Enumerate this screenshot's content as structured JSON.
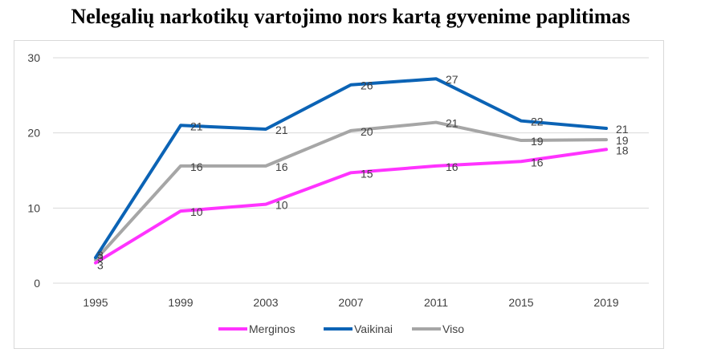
{
  "chart_data": {
    "type": "line",
    "title": "Nelegalių narkotikų vartojimo nors kartą gyvenime paplitimas",
    "xlabel": "",
    "ylabel": "",
    "ylim": [
      0,
      30
    ],
    "yticks": [
      0,
      10,
      20,
      30
    ],
    "grid": true,
    "legend_position": "bottom",
    "categories": [
      "1995",
      "1999",
      "2003",
      "2007",
      "2011",
      "2015",
      "2019"
    ],
    "series": [
      {
        "name": "Merginos",
        "color": "#ff33ff",
        "values": [
          2.7,
          9.6,
          10.5,
          14.7,
          15.6,
          16.2,
          17.8
        ],
        "labels": [
          "3",
          "10",
          "10",
          "15",
          "16",
          "16",
          "18"
        ]
      },
      {
        "name": "Vaikinai",
        "color": "#0b63b5",
        "values": [
          3.4,
          21.0,
          20.5,
          26.4,
          27.2,
          21.6,
          20.6
        ],
        "labels": [
          "3",
          "21",
          "21",
          "26",
          "27",
          "22",
          "21"
        ]
      },
      {
        "name": "Viso",
        "color": "#a6a6a6",
        "values": [
          3.1,
          15.6,
          15.6,
          20.3,
          21.4,
          19.0,
          19.1
        ],
        "labels": [
          "3",
          "16",
          "16",
          "20",
          "21",
          "19",
          "19"
        ]
      }
    ]
  }
}
